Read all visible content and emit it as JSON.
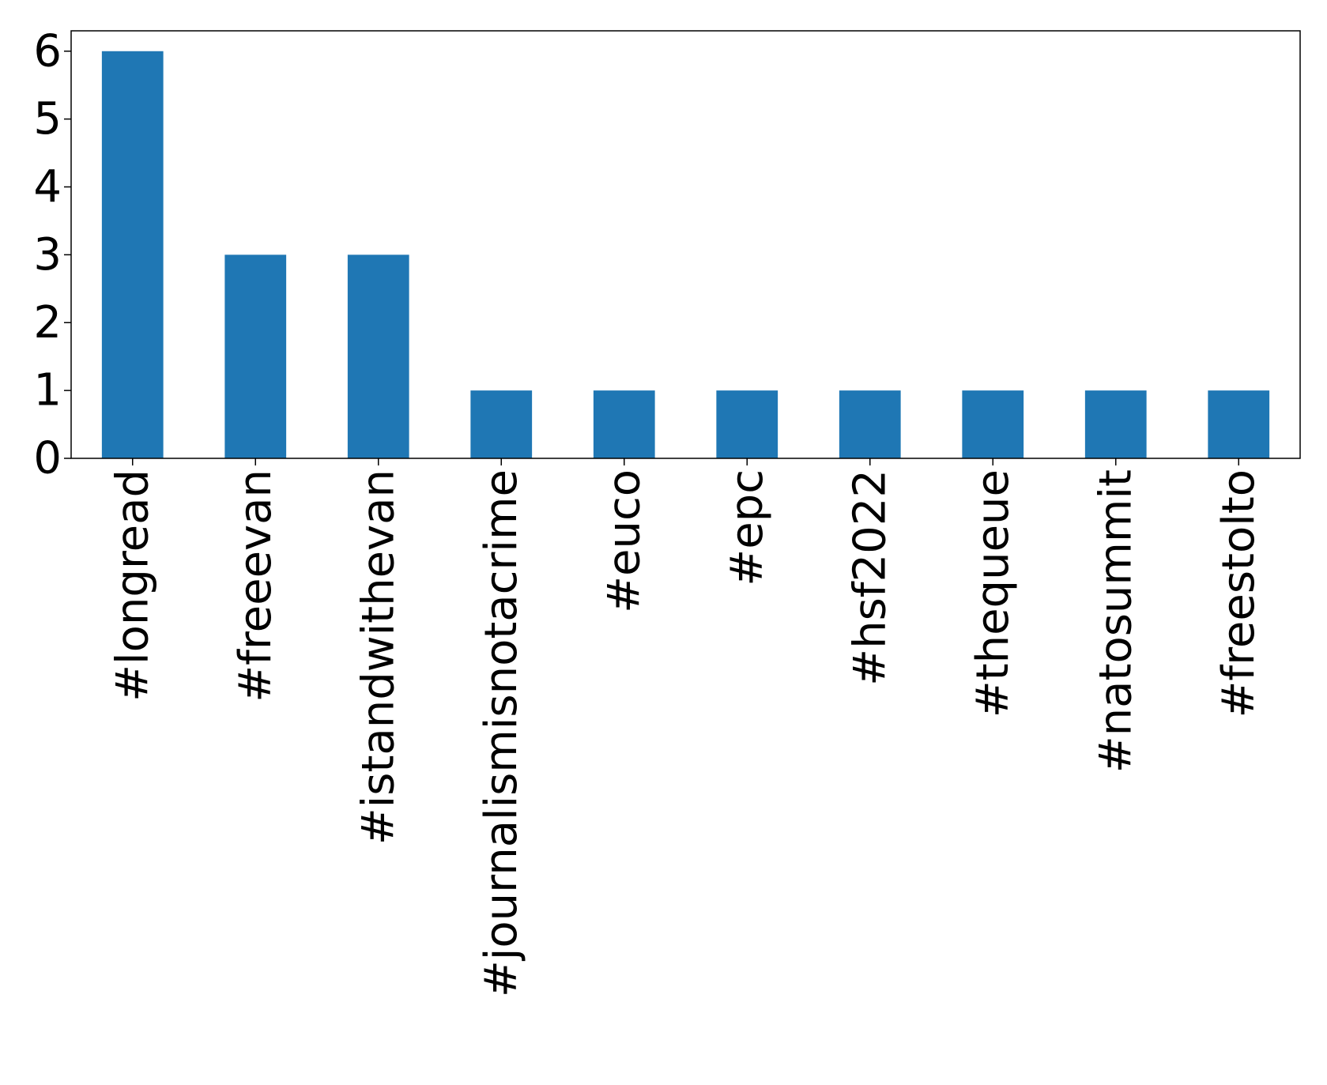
{
  "chart_data": {
    "type": "bar",
    "title": "",
    "xlabel": "",
    "ylabel": "",
    "categories": [
      "#longread",
      "#freeevan",
      "#istandwithevan",
      "#journalismisnotacrime",
      "#euco",
      "#epc",
      "#hsf2022",
      "#thequeue",
      "#natosummit",
      "#freestolto"
    ],
    "values": [
      6,
      3,
      3,
      1,
      1,
      1,
      1,
      1,
      1,
      1
    ],
    "ylim": [
      0,
      6.3
    ],
    "yticks": [
      0,
      1,
      2,
      3,
      4,
      5,
      6
    ],
    "ytick_labels": [
      "0",
      "1",
      "2",
      "3",
      "4",
      "5",
      "6"
    ],
    "bar_color": "#1f77b4",
    "grid": false,
    "legend": "none"
  }
}
